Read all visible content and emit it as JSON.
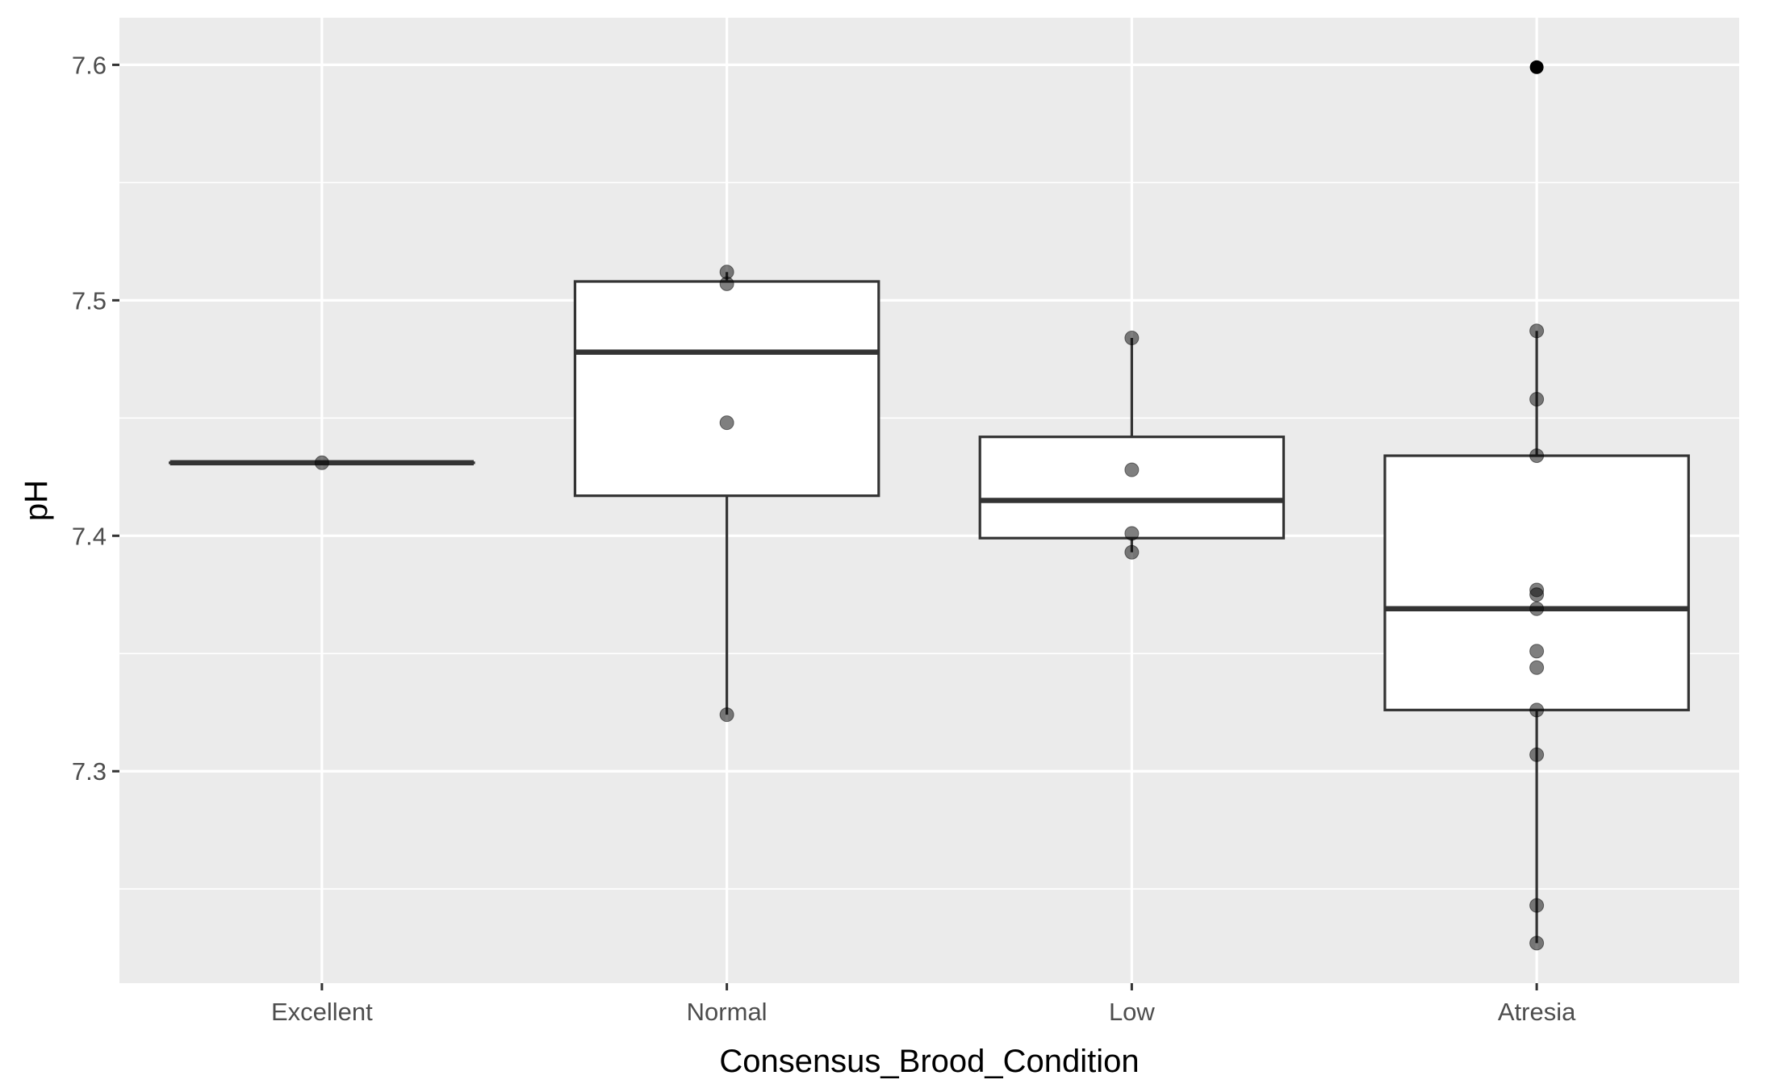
{
  "chart_data": {
    "type": "boxplot",
    "xlabel": "Consensus_Brood_Condition",
    "ylabel": "pH",
    "categories": [
      "Excellent",
      "Normal",
      "Low",
      "Atresia"
    ],
    "ylim": [
      7.21,
      7.62
    ],
    "y_ticks": [
      7.3,
      7.4,
      7.5,
      7.6
    ],
    "y_tick_labels": [
      "7.3",
      "7.4",
      "7.5",
      "7.6"
    ],
    "grid": true,
    "legend": "none",
    "boxes": [
      {
        "category": "Excellent",
        "lower_whisker": 7.431,
        "q1": 7.431,
        "median": 7.431,
        "q3": 7.431,
        "upper_whisker": 7.431,
        "outliers": []
      },
      {
        "category": "Normal",
        "lower_whisker": 7.324,
        "q1": 7.417,
        "median": 7.478,
        "q3": 7.508,
        "upper_whisker": 7.512,
        "outliers": []
      },
      {
        "category": "Low",
        "lower_whisker": 7.393,
        "q1": 7.399,
        "median": 7.415,
        "q3": 7.442,
        "upper_whisker": 7.484,
        "outliers": []
      },
      {
        "category": "Atresia",
        "lower_whisker": 7.227,
        "q1": 7.326,
        "median": 7.369,
        "q3": 7.434,
        "upper_whisker": 7.487,
        "outliers": [
          7.599
        ]
      }
    ],
    "points": [
      {
        "category": "Excellent",
        "values": [
          7.431
        ]
      },
      {
        "category": "Normal",
        "values": [
          7.512,
          7.507,
          7.448,
          7.324
        ]
      },
      {
        "category": "Low",
        "values": [
          7.484,
          7.428,
          7.401,
          7.393
        ]
      },
      {
        "category": "Atresia",
        "values": [
          7.487,
          7.458,
          7.434,
          7.377,
          7.375,
          7.369,
          7.351,
          7.344,
          7.326,
          7.307,
          7.243,
          7.227
        ]
      }
    ],
    "colors": {
      "panel": "#ebebeb",
      "grid": "#ffffff",
      "box_fill": "#ffffff",
      "box_line": "#333333",
      "point": "#000000"
    }
  }
}
